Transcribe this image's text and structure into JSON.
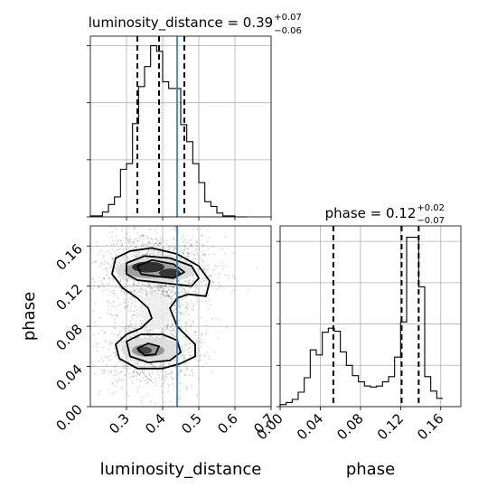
{
  "chart_data": {
    "type": "corner",
    "truth_color": "#1f77b4",
    "line_color": "#000000",
    "parameters": [
      {
        "name": "luminosity_distance",
        "title_main": "luminosity_distance = 0.39",
        "title_upper": "+0.07",
        "title_lower": "−0.06",
        "range": [
          0.2,
          0.7
        ],
        "ticks": [
          0.3,
          0.4,
          0.5,
          0.6,
          0.7
        ],
        "tick_labels": [
          "0.3",
          "0.4",
          "0.5",
          "0.6",
          "0.7"
        ],
        "quantiles": [
          0.33,
          0.39,
          0.46
        ],
        "truth": 0.44,
        "hist_bin_width": 0.0167,
        "hist_bins": [
          {
            "x": 0.2,
            "count": 1
          },
          {
            "x": 0.2167,
            "count": 1
          },
          {
            "x": 0.2333,
            "count": 5
          },
          {
            "x": 0.25,
            "count": 13
          },
          {
            "x": 0.2667,
            "count": 21
          },
          {
            "x": 0.2833,
            "count": 50
          },
          {
            "x": 0.3,
            "count": 56
          },
          {
            "x": 0.3167,
            "count": 98
          },
          {
            "x": 0.3333,
            "count": 137
          },
          {
            "x": 0.35,
            "count": 158
          },
          {
            "x": 0.3667,
            "count": 180
          },
          {
            "x": 0.3833,
            "count": 174
          },
          {
            "x": 0.4,
            "count": 142
          },
          {
            "x": 0.4167,
            "count": 135
          },
          {
            "x": 0.4333,
            "count": 135
          },
          {
            "x": 0.45,
            "count": 97
          },
          {
            "x": 0.4667,
            "count": 79
          },
          {
            "x": 0.4833,
            "count": 56
          },
          {
            "x": 0.5,
            "count": 36
          },
          {
            "x": 0.5167,
            "count": 16
          },
          {
            "x": 0.5333,
            "count": 11
          },
          {
            "x": 0.55,
            "count": 4
          },
          {
            "x": 0.5667,
            "count": 1
          },
          {
            "x": 0.5833,
            "count": 1
          },
          {
            "x": 0.6,
            "count": 0
          },
          {
            "x": 0.6167,
            "count": 0
          }
        ],
        "hist_ylim": [
          0,
          190
        ],
        "hist_yticks": [
          0,
          60,
          120,
          180
        ]
      },
      {
        "name": "phase",
        "title_main": "phase = 0.12",
        "title_upper": "+0.02",
        "title_lower": "−0.07",
        "range": [
          0.0,
          0.18
        ],
        "ticks": [
          0.0,
          0.04,
          0.08,
          0.12,
          0.16
        ],
        "tick_labels": [
          "0.00",
          "0.04",
          "0.08",
          "0.12",
          "0.16"
        ],
        "quantiles": [
          0.053,
          0.121,
          0.138
        ],
        "truth": null,
        "hist_bin_width": 0.006,
        "hist_bins": [
          {
            "x": 0.0,
            "count": 2
          },
          {
            "x": 0.006,
            "count": 4
          },
          {
            "x": 0.012,
            "count": 7
          },
          {
            "x": 0.018,
            "count": 14
          },
          {
            "x": 0.024,
            "count": 28
          },
          {
            "x": 0.03,
            "count": 55
          },
          {
            "x": 0.036,
            "count": 50
          },
          {
            "x": 0.042,
            "count": 72
          },
          {
            "x": 0.048,
            "count": 76
          },
          {
            "x": 0.054,
            "count": 73
          },
          {
            "x": 0.06,
            "count": 53
          },
          {
            "x": 0.066,
            "count": 40
          },
          {
            "x": 0.072,
            "count": 30
          },
          {
            "x": 0.078,
            "count": 24
          },
          {
            "x": 0.084,
            "count": 20
          },
          {
            "x": 0.09,
            "count": 19
          },
          {
            "x": 0.096,
            "count": 20
          },
          {
            "x": 0.102,
            "count": 24
          },
          {
            "x": 0.108,
            "count": 29
          },
          {
            "x": 0.114,
            "count": 48
          },
          {
            "x": 0.12,
            "count": 82
          },
          {
            "x": 0.126,
            "count": 164
          },
          {
            "x": 0.132,
            "count": 164
          },
          {
            "x": 0.138,
            "count": 116
          },
          {
            "x": 0.144,
            "count": 29
          },
          {
            "x": 0.15,
            "count": 15
          },
          {
            "x": 0.156,
            "count": 8
          }
        ],
        "hist_ylim": [
          0,
          175
        ],
        "hist_yticks": [
          0,
          40,
          80,
          120,
          160
        ]
      }
    ],
    "joint": {
      "x_param": "luminosity_distance",
      "y_param": "phase",
      "modes": [
        {
          "cx": 0.38,
          "cy": 0.136,
          "sx": 0.06,
          "sy": 0.012,
          "weight": 0.62
        },
        {
          "cx": 0.37,
          "cy": 0.057,
          "sx": 0.055,
          "sy": 0.014,
          "weight": 0.38
        }
      ],
      "bridge": {
        "from": [
          0.41,
          0.12
        ],
        "to": [
          0.39,
          0.075
        ]
      },
      "contour_levels": [
        "outer",
        "middle",
        "inner"
      ]
    },
    "xlabel_left": "luminosity_distance",
    "xlabel_right": "phase",
    "ylabel_lower": "phase"
  }
}
